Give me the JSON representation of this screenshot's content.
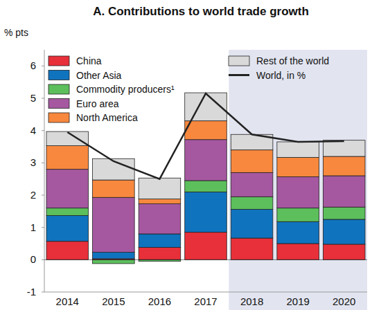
{
  "chart_data": {
    "type": "bar",
    "title": "A. Contributions to world trade growth",
    "y_label": "% pts",
    "categories": [
      "2014",
      "2015",
      "2016",
      "2017",
      "2018",
      "2019",
      "2020"
    ],
    "stacked": true,
    "legend": "top",
    "grid": false,
    "ylim": [
      -1,
      6.5
    ],
    "yticks": [
      -1,
      0,
      1,
      2,
      3,
      4,
      5,
      6
    ],
    "series": [
      {
        "name": "China",
        "color": "#e8303a",
        "values": [
          0.57,
          0.03,
          0.38,
          0.85,
          0.67,
          0.5,
          0.48
        ]
      },
      {
        "name": "Other Asia",
        "color": "#1073be",
        "values": [
          0.8,
          0.2,
          0.42,
          1.25,
          0.89,
          0.68,
          0.77
        ]
      },
      {
        "name": "Commodity producers¹",
        "color": "#5cbf5c",
        "values": [
          0.23,
          -0.12,
          -0.05,
          0.35,
          0.39,
          0.42,
          0.38
        ]
      },
      {
        "name": "Euro area",
        "color": "#a558a0",
        "values": [
          1.2,
          1.7,
          0.93,
          1.27,
          0.75,
          0.97,
          0.97
        ]
      },
      {
        "name": "North America",
        "color": "#f7883e",
        "values": [
          0.73,
          0.54,
          0.15,
          0.58,
          0.7,
          0.6,
          0.6
        ]
      },
      {
        "name": "Rest of the world",
        "color": "#d9d9d9",
        "values": [
          0.44,
          0.66,
          0.65,
          0.87,
          0.48,
          0.48,
          0.5
        ]
      },
      {
        "name": "World, in %",
        "type": "line",
        "color": "#222222",
        "values": [
          3.95,
          3.05,
          2.5,
          5.15,
          3.88,
          3.65,
          3.67
        ]
      }
    ]
  }
}
